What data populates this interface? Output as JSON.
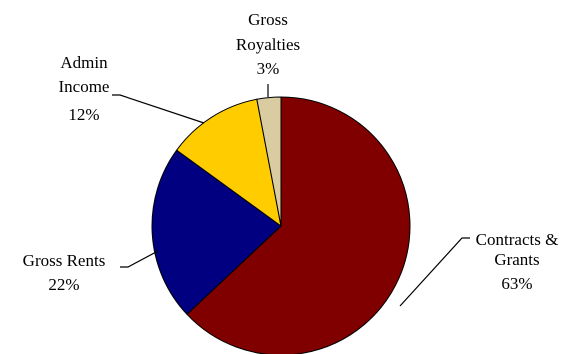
{
  "chart_data": {
    "type": "pie",
    "title": "",
    "slices": [
      {
        "label_lines": [
          "Contracts &",
          "Grants"
        ],
        "pct_label": "63%",
        "value": 63,
        "color": "#800000"
      },
      {
        "label_lines": [
          "Gross Rents"
        ],
        "pct_label": "22%",
        "value": 22,
        "color": "#000080"
      },
      {
        "label_lines": [
          "Admin",
          "Income"
        ],
        "pct_label": "12%",
        "value": 12,
        "color": "#FFCC00"
      },
      {
        "label_lines": [
          "Gross",
          "Royalties"
        ],
        "pct_label": "3%",
        "value": 3,
        "color": "#D8CCA0"
      }
    ],
    "start_angle_deg": 0,
    "direction": "clockwise"
  }
}
